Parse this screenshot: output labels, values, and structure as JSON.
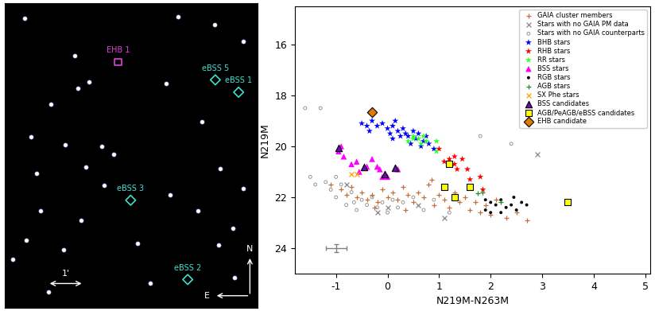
{
  "chart_data": [
    {
      "type": "image",
      "tick_labels": false,
      "xlim": [
        0,
        6.96
      ],
      "ylim": [
        0,
        8.38
      ],
      "stars": {
        "color": "#ffffff",
        "x": [
          0.56,
          1.93,
          2.33,
          2.02,
          1.27,
          0.73,
          1.67,
          2.67,
          2.24,
          2.73,
          1.0,
          0.6,
          1.62,
          2.11,
          5.93,
          6.56,
          6.29,
          5.89,
          6.33,
          4.02,
          5.44,
          4.44,
          4.78,
          5.78,
          6.56,
          3.0,
          5.33,
          4.56,
          3.67,
          1.22,
          0.22,
          0.89
        ],
        "y": [
          7.96,
          6.93,
          6.22,
          6.04,
          5.6,
          4.71,
          4.49,
          4.44,
          3.87,
          3.38,
          2.67,
          1.87,
          1.6,
          2.4,
          3.82,
          3.29,
          2.18,
          1.73,
          0.84,
          0.67,
          5.11,
          6.18,
          8.0,
          7.78,
          7.33,
          4.22,
          2.67,
          3.11,
          1.78,
          0.44,
          1.33,
          3.69
        ]
      },
      "sources": [
        {
          "name": "EHB 1",
          "x": 3.13,
          "y": 6.76,
          "marker": "square",
          "color": "#e040e0"
        },
        {
          "name": "eBSS 5",
          "x": 5.8,
          "y": 6.27,
          "marker": "diamond",
          "color": "#40e0d0"
        },
        {
          "name": "eBSS 1",
          "x": 6.44,
          "y": 5.93,
          "marker": "diamond",
          "color": "#40e0d0"
        },
        {
          "name": "eBSS 3",
          "x": 3.47,
          "y": 2.96,
          "marker": "diamond",
          "color": "#40e0d0"
        },
        {
          "name": "eBSS 2",
          "x": 5.04,
          "y": 0.78,
          "marker": "diamond",
          "color": "#40e0d0"
        }
      ],
      "scale_bar": {
        "label": "1'",
        "length": 1
      },
      "compass": [
        "N",
        "E"
      ]
    },
    {
      "type": "scatter",
      "xlabel": "N219M-N263M",
      "ylabel": "N219M",
      "xlim": [
        -1.8,
        5.1
      ],
      "ylim": [
        25,
        14.5
      ],
      "xticks": [
        -1,
        0,
        1,
        2,
        3,
        4,
        5
      ],
      "yticks": [
        16,
        18,
        20,
        22,
        24
      ],
      "legend": "upper right",
      "error_bar": {
        "x": -1,
        "y": 24,
        "xerr": 0.2,
        "yerr": 0.15
      },
      "series": [
        {
          "name": "GAIA cluster members",
          "marker": "plus",
          "color": "#c0703a",
          "x": [
            -1.1,
            -0.9,
            -0.8,
            -0.7,
            -0.6,
            -0.5,
            -0.4,
            -0.3,
            -0.2,
            -0.1,
            0.0,
            0.1,
            0.2,
            0.3,
            0.4,
            0.5,
            0.6,
            0.7,
            0.8,
            0.9,
            1.0,
            1.1,
            1.2,
            1.3,
            1.4,
            1.5,
            1.6,
            1.7,
            1.8,
            1.9,
            2.0,
            2.1,
            2.3,
            2.5,
            2.7,
            0.85,
            -0.25,
            0.35
          ],
          "y": [
            21.5,
            21.7,
            21.9,
            21.6,
            22.0,
            21.8,
            22.1,
            21.9,
            22.2,
            21.7,
            22.0,
            21.8,
            22.1,
            21.6,
            21.9,
            22.2,
            21.8,
            22.0,
            21.5,
            22.3,
            21.9,
            22.1,
            22.4,
            21.8,
            22.2,
            22.0,
            22.5,
            22.2,
            22.6,
            22.3,
            22.7,
            22.1,
            22.8,
            22.6,
            22.9,
            21.3,
            22.4,
            22.5
          ]
        },
        {
          "name": "Stars with no GAIA PM data",
          "marker": "x",
          "color": "#888888",
          "x": [
            -0.8,
            -0.2,
            0.6,
            1.1,
            2.9,
            0.0
          ],
          "y": [
            21.5,
            22.6,
            22.3,
            22.8,
            20.3,
            22.4
          ]
        },
        {
          "name": "Stars with no GAIA counterparts",
          "marker": "open_circle",
          "color": "#888888",
          "x": [
            -1.6,
            -1.3,
            -1.5,
            -1.4,
            -1.2,
            -1.1,
            -1.0,
            -0.9,
            -0.8,
            -0.7,
            -0.6,
            -0.5,
            -0.4,
            -0.3,
            -0.2,
            -0.1,
            0.0,
            0.1,
            0.2,
            0.3,
            0.5,
            0.7,
            0.9,
            1.2,
            -1.0,
            -0.65,
            1.8,
            2.4
          ],
          "y": [
            18.5,
            18.5,
            21.2,
            21.5,
            21.4,
            21.7,
            22.0,
            21.5,
            22.3,
            21.8,
            22.5,
            22.1,
            22.3,
            22.0,
            22.4,
            22.2,
            22.6,
            22.1,
            22.4,
            22.2,
            22.0,
            22.5,
            22.1,
            22.6,
            21.2,
            22.2,
            19.6,
            19.9
          ]
        },
        {
          "name": "BHB stars",
          "marker": "star",
          "color": "#0000ff",
          "x": [
            -0.5,
            -0.4,
            -0.3,
            -0.2,
            -0.1,
            0.0,
            0.1,
            0.15,
            0.2,
            0.3,
            0.35,
            0.4,
            0.5,
            0.55,
            0.6,
            0.7,
            0.8,
            0.9,
            0.45,
            0.25,
            -0.35,
            0.05,
            0.65,
            0.1,
            0.75
          ],
          "y": [
            19.1,
            19.2,
            19.0,
            19.2,
            19.1,
            19.3,
            19.2,
            19.0,
            19.4,
            19.3,
            19.5,
            19.6,
            19.4,
            19.7,
            19.5,
            19.8,
            19.9,
            20.1,
            19.9,
            19.6,
            19.4,
            19.5,
            20.0,
            19.7,
            19.6
          ]
        },
        {
          "name": "RHB stars",
          "marker": "star",
          "color": "#ff0000",
          "x": [
            1.0,
            1.1,
            1.2,
            1.3,
            1.45,
            1.35,
            1.55,
            1.6,
            1.8,
            1.85,
            1.3
          ],
          "y": [
            20.1,
            20.6,
            20.5,
            20.4,
            20.5,
            20.9,
            20.9,
            21.3,
            21.2,
            21.7,
            20.7
          ]
        },
        {
          "name": "RR stars",
          "marker": "star",
          "color": "#33ff33",
          "x": [
            0.4,
            0.5,
            0.6,
            0.7,
            0.75,
            0.95,
            0.5,
            0.65,
            0.95
          ],
          "y": [
            19.8,
            19.7,
            19.7,
            19.6,
            19.8,
            20.2,
            19.6,
            19.9,
            19.8
          ]
        },
        {
          "name": "BSS stars",
          "marker": "triangle",
          "color": "#ff00ff",
          "x": [
            -0.95,
            -0.85,
            -0.7,
            -0.6,
            -0.55,
            -0.4,
            -0.2,
            -0.15,
            -0.1,
            0.0,
            0.2,
            -0.9,
            -0.3
          ],
          "y": [
            20.2,
            20.4,
            20.7,
            20.6,
            21.0,
            20.8,
            20.8,
            20.9,
            21.2,
            21.2,
            20.9,
            20.0,
            20.5
          ]
        },
        {
          "name": "RGB stars",
          "marker": "dot",
          "color": "#000000",
          "x": [
            1.9,
            2.0,
            2.1,
            2.2,
            2.3,
            2.4,
            2.5,
            2.6,
            2.7,
            2.2,
            1.9,
            2.0,
            2.45
          ],
          "y": [
            22.1,
            22.2,
            22.3,
            22.1,
            22.4,
            22.3,
            22.5,
            22.2,
            22.3,
            22.6,
            22.5,
            22.6,
            22.0
          ]
        },
        {
          "name": "AGB stars",
          "marker": "plus",
          "color": "#228b22",
          "x": [
            1.75,
            1.85,
            2.2
          ],
          "y": [
            21.85,
            21.8,
            22.2
          ]
        },
        {
          "name": "SX Phe stars",
          "marker": "x",
          "color": "#ffa500",
          "x": [
            -0.7,
            -0.6
          ],
          "y": [
            21.1,
            21.1
          ]
        },
        {
          "name": "BSS candidates",
          "marker": "outlined_triangle",
          "color": "#6a0dad",
          "x": [
            -0.95,
            -0.45,
            0.15,
            -0.05
          ],
          "y": [
            20.05,
            20.8,
            20.85,
            21.1
          ]
        },
        {
          "name": "AGB/PeAGB/eBSS candidates",
          "marker": "square",
          "color": "#ffff00",
          "x": [
            1.2,
            1.1,
            1.6,
            1.3,
            3.5
          ],
          "y": [
            20.7,
            21.6,
            21.6,
            22.0,
            22.2
          ]
        },
        {
          "name": "EHB candidate",
          "marker": "diamond",
          "color": "#e07b00",
          "x": [
            -0.3
          ],
          "y": [
            18.65
          ]
        }
      ]
    }
  ]
}
